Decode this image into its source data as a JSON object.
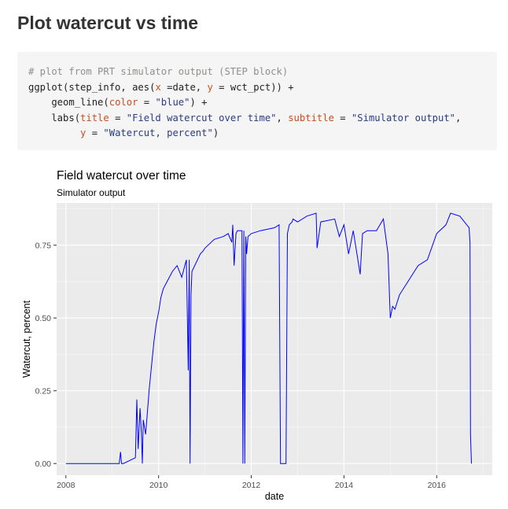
{
  "page": {
    "title": "Plot watercut vs time"
  },
  "code": {
    "lines": [
      [
        {
          "t": "# plot from PRT simulator output (STEP block)",
          "c": "comment"
        }
      ],
      [
        {
          "t": "ggplot(step_info, aes(",
          "c": "plain"
        },
        {
          "t": "x",
          "c": "arg"
        },
        {
          "t": " =date, ",
          "c": "plain"
        },
        {
          "t": "y",
          "c": "arg"
        },
        {
          "t": " = wct_pct)) +",
          "c": "plain"
        }
      ],
      [
        {
          "t": "    geom_line(",
          "c": "plain"
        },
        {
          "t": "color",
          "c": "arg"
        },
        {
          "t": " = ",
          "c": "plain"
        },
        {
          "t": "\"blue\"",
          "c": "str"
        },
        {
          "t": ") +",
          "c": "plain"
        }
      ],
      [
        {
          "t": "    labs(",
          "c": "plain"
        },
        {
          "t": "title",
          "c": "arg"
        },
        {
          "t": " = ",
          "c": "plain"
        },
        {
          "t": "\"Field watercut over time\"",
          "c": "str"
        },
        {
          "t": ", ",
          "c": "plain"
        },
        {
          "t": "subtitle",
          "c": "arg"
        },
        {
          "t": " = ",
          "c": "plain"
        },
        {
          "t": "\"Simulator output\"",
          "c": "str"
        },
        {
          "t": ",",
          "c": "plain"
        }
      ],
      [
        {
          "t": "         ",
          "c": "plain"
        },
        {
          "t": "y",
          "c": "arg"
        },
        {
          "t": " = ",
          "c": "plain"
        },
        {
          "t": "\"Watercut, percent\"",
          "c": "str"
        },
        {
          "t": ")",
          "c": "plain"
        }
      ]
    ]
  },
  "chart_data": {
    "type": "line",
    "title": "Field watercut over time",
    "subtitle": "Simulator output",
    "xlabel": "date",
    "ylabel": "Watercut, percent",
    "xlim": [
      2007.8,
      2017.2
    ],
    "ylim": [
      -0.04,
      0.895
    ],
    "x_ticks": [
      2008,
      2010,
      2012,
      2014,
      2016
    ],
    "y_ticks": [
      0.0,
      0.25,
      0.5,
      0.75
    ],
    "y_tick_labels": [
      "0.00",
      "0.25",
      "0.50",
      "0.75"
    ],
    "grid": true,
    "panel_background": "#ebebeb",
    "line_color": "#0000ff",
    "series": [
      {
        "x": [
          2008.0,
          2009.15,
          2009.18,
          2009.2,
          2009.24,
          2009.5,
          2009.53,
          2009.56,
          2009.6,
          2009.63,
          2009.65,
          2009.67,
          2009.72,
          2009.8,
          2009.9,
          2009.95,
          2010.0,
          2010.05,
          2010.1,
          2010.2,
          2010.3,
          2010.4,
          2010.5,
          2010.6,
          2010.64,
          2010.66,
          2010.68,
          2010.7,
          2010.72,
          2010.9,
          2010.96,
          2011.0,
          2011.2,
          2011.4,
          2011.5,
          2011.58,
          2011.6,
          2011.63,
          2011.67,
          2011.7,
          2011.8,
          2011.82,
          2011.84,
          2011.86,
          2011.88,
          2011.9,
          2011.93,
          2012.0,
          2012.2,
          2012.5,
          2012.6,
          2012.63,
          2012.66,
          2012.7,
          2012.75,
          2012.78,
          2012.82,
          2012.88,
          2012.9,
          2013.0,
          2013.2,
          2013.4,
          2013.42,
          2013.5,
          2013.8,
          2013.9,
          2014.0,
          2014.1,
          2014.2,
          2014.3,
          2014.35,
          2014.4,
          2014.5,
          2014.7,
          2014.85,
          2014.95,
          2015.0,
          2015.05,
          2015.1,
          2015.2,
          2015.4,
          2015.6,
          2015.8,
          2016.0,
          2016.2,
          2016.3,
          2016.5,
          2016.6,
          2016.7,
          2016.72,
          2016.73,
          2016.75
        ],
        "y": [
          0.0,
          0.0,
          0.04,
          0.0,
          0.0,
          0.02,
          0.22,
          0.05,
          0.19,
          0.1,
          0.0,
          0.15,
          0.1,
          0.26,
          0.42,
          0.48,
          0.52,
          0.57,
          0.6,
          0.63,
          0.66,
          0.68,
          0.64,
          0.7,
          0.32,
          0.7,
          0.0,
          0.58,
          0.66,
          0.72,
          0.73,
          0.74,
          0.77,
          0.78,
          0.79,
          0.76,
          0.82,
          0.68,
          0.79,
          0.8,
          0.8,
          0.0,
          0.8,
          0.0,
          0.78,
          0.72,
          0.78,
          0.79,
          0.8,
          0.81,
          0.82,
          0.0,
          0.0,
          0.0,
          0.0,
          0.79,
          0.82,
          0.83,
          0.84,
          0.83,
          0.85,
          0.86,
          0.74,
          0.83,
          0.84,
          0.78,
          0.82,
          0.72,
          0.8,
          0.7,
          0.65,
          0.79,
          0.8,
          0.8,
          0.84,
          0.72,
          0.5,
          0.54,
          0.53,
          0.58,
          0.63,
          0.68,
          0.7,
          0.79,
          0.82,
          0.86,
          0.85,
          0.83,
          0.81,
          0.76,
          0.1,
          0.0
        ]
      }
    ]
  }
}
